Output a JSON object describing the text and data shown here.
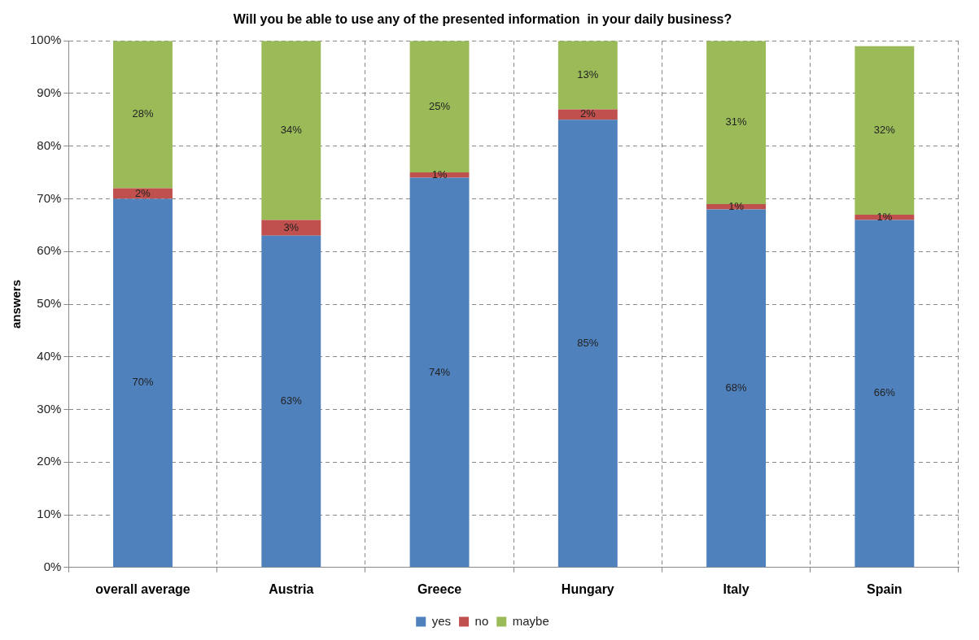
{
  "chart_data": {
    "type": "bar",
    "stacked": true,
    "title": "Will you be able to use any of the presented information  in your daily business?",
    "ylabel": "answers",
    "categories": [
      "overall average",
      "Austria",
      "Greece",
      "Hungary",
      "Italy",
      "Spain"
    ],
    "series": [
      {
        "name": "yes",
        "color": "#4f81bd",
        "values": [
          70,
          63,
          74,
          85,
          68,
          66
        ],
        "value_labels": [
          "70%",
          "63%",
          "74%",
          "85%",
          "68%",
          "66%"
        ]
      },
      {
        "name": "no",
        "color": "#c0504d",
        "values": [
          2,
          3,
          1,
          2,
          1,
          1
        ],
        "value_labels": [
          "2%",
          "3%",
          "1%",
          "2%",
          "1%",
          "1%"
        ]
      },
      {
        "name": "maybe",
        "color": "#9bbb59",
        "values": [
          28,
          34,
          25,
          13,
          31,
          32
        ],
        "value_labels": [
          "28%",
          "34%",
          "25%",
          "13%",
          "31%",
          "32%"
        ]
      }
    ],
    "ylim": [
      0,
      100
    ],
    "yticks": [
      {
        "value": 0,
        "label": "0%"
      },
      {
        "value": 10,
        "label": "10%"
      },
      {
        "value": 20,
        "label": "20%"
      },
      {
        "value": 30,
        "label": "30%"
      },
      {
        "value": 40,
        "label": "40%"
      },
      {
        "value": 50,
        "label": "50%"
      },
      {
        "value": 60,
        "label": "60%"
      },
      {
        "value": 70,
        "label": "70%"
      },
      {
        "value": 80,
        "label": "80%"
      },
      {
        "value": 90,
        "label": "90%"
      },
      {
        "value": 100,
        "label": "100%"
      }
    ],
    "grid": true,
    "legend": "bottom"
  }
}
